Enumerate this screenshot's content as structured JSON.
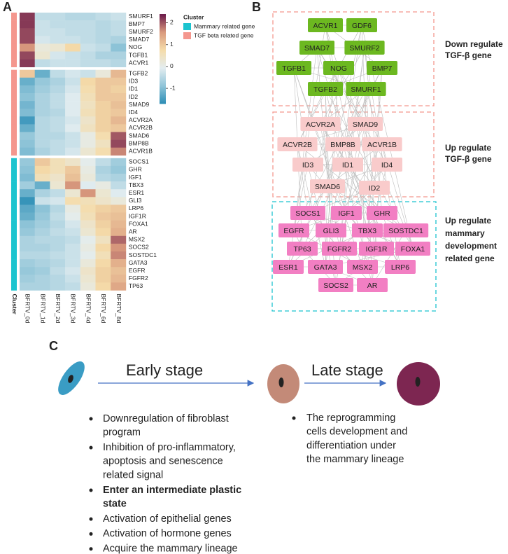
{
  "panels": [
    "A",
    "B",
    "C"
  ],
  "chart_data": {
    "type": "heatmap",
    "columns": [
      "BFRTV_0d",
      "BFRTV_1d",
      "BFRTV_2d",
      "BFRTV_3d",
      "BFRTV_4d",
      "BFRTV_6d",
      "BFRTV_8d"
    ],
    "rows": [
      "SMURF1",
      "BMP7",
      "SMURF2",
      "SMAD7",
      "NOG",
      "TGFB1",
      "ACVR1",
      "TGFB2",
      "ID3",
      "ID1",
      "ID2",
      "SMAD9",
      "ID4",
      "ACVR2A",
      "ACVR2B",
      "SMAD6",
      "BMP8B",
      "ACVR1B",
      "SOCS1",
      "GHR",
      "IGF1",
      "TBX3",
      "ESR1",
      "GLI3",
      "LRP6",
      "IGF1R",
      "FOXA1",
      "AR",
      "MSX2",
      "SOCS2",
      "SOSTDC1",
      "GATA3",
      "EGFR",
      "FGFR2",
      "TP63"
    ],
    "row_cluster": [
      1,
      1,
      1,
      1,
      1,
      1,
      1,
      1,
      1,
      1,
      1,
      1,
      1,
      1,
      1,
      1,
      1,
      1,
      0,
      0,
      0,
      0,
      0,
      0,
      0,
      0,
      0,
      0,
      0,
      0,
      0,
      0,
      0,
      0,
      0
    ],
    "row_splits": [
      7,
      18
    ],
    "values": [
      [
        2.2,
        -0.4,
        -0.4,
        -0.5,
        -0.5,
        -0.4,
        -0.3
      ],
      [
        2.2,
        -0.3,
        -0.4,
        -0.4,
        -0.4,
        -0.5,
        -0.4
      ],
      [
        2.1,
        -0.3,
        -0.3,
        -0.4,
        -0.4,
        -0.5,
        -0.4
      ],
      [
        2.1,
        -0.2,
        -0.3,
        -0.3,
        -0.4,
        -0.5,
        -0.6
      ],
      [
        1.6,
        0.2,
        0.3,
        0.8,
        -0.3,
        -0.4,
        -0.9
      ],
      [
        2.1,
        0.3,
        -0.2,
        -0.3,
        -0.4,
        -0.6,
        -0.6
      ],
      [
        2.2,
        -0.4,
        -0.3,
        -0.3,
        -0.4,
        -0.4,
        -0.5
      ],
      [
        1.0,
        -1.2,
        -0.4,
        -0.2,
        -0.3,
        0.2,
        1.2
      ],
      [
        -1.2,
        -0.8,
        -0.6,
        -0.3,
        0.8,
        1.0,
        1.0
      ],
      [
        -1.0,
        -0.7,
        -0.5,
        -0.2,
        0.7,
        1.0,
        0.9
      ],
      [
        -0.9,
        -0.6,
        -0.4,
        -0.1,
        0.6,
        1.0,
        1.0
      ],
      [
        -1.1,
        -0.6,
        -0.4,
        -0.1,
        0.5,
        0.9,
        1.1
      ],
      [
        -1.0,
        -0.6,
        -0.5,
        -0.1,
        0.6,
        0.9,
        1.0
      ],
      [
        -1.5,
        -0.5,
        -0.4,
        -0.2,
        0.4,
        0.9,
        1.2
      ],
      [
        -1.2,
        -0.5,
        -0.4,
        -0.1,
        0.5,
        0.9,
        1.0
      ],
      [
        -0.8,
        -0.5,
        -0.5,
        -0.3,
        0.1,
        0.7,
        2.0
      ],
      [
        -0.9,
        -0.5,
        -0.4,
        -0.3,
        0.1,
        0.5,
        2.1
      ],
      [
        -1.0,
        -0.6,
        -0.4,
        -0.2,
        0.3,
        0.7,
        1.7
      ],
      [
        -0.8,
        1.0,
        0.6,
        0.4,
        0.0,
        -0.4,
        -0.7
      ],
      [
        -0.9,
        0.8,
        0.6,
        1.0,
        0.1,
        -0.6,
        -0.8
      ],
      [
        -1.0,
        0.6,
        0.4,
        1.1,
        0.2,
        -0.5,
        -0.6
      ],
      [
        -0.7,
        -1.2,
        0.3,
        1.6,
        -0.1,
        0.1,
        -0.4
      ],
      [
        -1.2,
        -0.6,
        -0.4,
        0.3,
        1.6,
        0.3,
        -0.1
      ],
      [
        -1.6,
        -0.3,
        -0.2,
        0.7,
        0.6,
        0.4,
        0.2
      ],
      [
        -1.3,
        -0.9,
        -0.5,
        0.1,
        0.7,
        0.9,
        1.0
      ],
      [
        -1.2,
        -0.8,
        -0.4,
        0.0,
        0.6,
        1.0,
        1.1
      ],
      [
        -0.9,
        -0.7,
        -0.5,
        -0.2,
        0.4,
        0.9,
        1.2
      ],
      [
        -0.8,
        -0.6,
        -0.4,
        -0.3,
        0.3,
        0.8,
        1.3
      ],
      [
        -0.6,
        -0.5,
        -0.5,
        -0.4,
        0.0,
        0.5,
        1.9
      ],
      [
        -0.6,
        -0.6,
        -0.5,
        -0.3,
        0.1,
        0.8,
        1.6
      ],
      [
        -0.5,
        -0.5,
        -0.4,
        -0.3,
        0.0,
        0.6,
        1.7
      ],
      [
        -0.7,
        -0.6,
        -0.5,
        -0.3,
        0.2,
        0.8,
        1.3
      ],
      [
        -0.8,
        -0.7,
        -0.4,
        -0.2,
        0.4,
        0.9,
        1.1
      ],
      [
        -0.7,
        -0.6,
        -0.5,
        -0.3,
        0.3,
        0.9,
        1.2
      ],
      [
        -0.6,
        -0.6,
        -0.5,
        -0.4,
        0.2,
        0.8,
        1.4
      ]
    ],
    "zlim": [
      -1.7,
      2.4
    ],
    "zticks": [
      2,
      1,
      0,
      -1
    ],
    "colormap": [
      "#2b8db5",
      "#8fc4d8",
      "#e3edf0",
      "#f5dcaa",
      "#d9997d",
      "#6b1a4a"
    ],
    "legend_title": "Cluster",
    "clusters": [
      {
        "name": "Mammary related gene",
        "color": "#1cc4cf"
      },
      {
        "name": "TGF beta related gene",
        "color": "#f4978e"
      }
    ],
    "cluster_axis_label": "Cluster"
  },
  "network": {
    "groups": [
      {
        "label": [
          "Down regulate",
          "TGF-β gene"
        ],
        "color": "#6cb820",
        "box_color": "#f4978e",
        "nodes": [
          "ACVR1",
          "GDF6",
          "SMAD7",
          "SMURF2",
          "TGFB1",
          "NOG",
          "BMP7",
          "TGFB2",
          "SMURF1"
        ]
      },
      {
        "label": [
          "Up regulate",
          "TGF-β gene"
        ],
        "color": "#f9cbcb",
        "box_color": "#f4978e",
        "nodes": [
          "ACVR2A",
          "SMAD9",
          "ACVR2B",
          "BMP8B",
          "ACVR1B",
          "ID3",
          "ID1",
          "ID4",
          "SMAD6",
          "ID2"
        ]
      },
      {
        "label": [
          "Up regulate",
          "mammary",
          "development",
          "related gene"
        ],
        "color": "#f27fc3",
        "box_color": "#1cc4cf",
        "nodes": [
          "SOCS1",
          "IGF1",
          "GHR",
          "EGFR",
          "GLI3",
          "TBX3",
          "SOSTDC1",
          "TP63",
          "FGFR2",
          "IGF1R",
          "FOXA1",
          "ESR1",
          "GATA3",
          "MSX2",
          "LRP6",
          "SOCS2",
          "AR"
        ]
      }
    ]
  },
  "schematic": {
    "stages": [
      "Early stage",
      "Late stage"
    ],
    "bullets": [
      [
        {
          "lines": [
            "Downregulation of  fibroblast",
            "program"
          ],
          "bold": false
        },
        {
          "lines": [
            "Inhibition of  pro-inflammatory,",
            "apoptosis and  senescence",
            "related signal"
          ],
          "bold": false
        },
        {
          "lines": [
            "Enter an intermediate  plastic",
            "state"
          ],
          "bold": true
        },
        {
          "lines": [
            "Activation of epithelial genes"
          ],
          "bold": false
        },
        {
          "lines": [
            "Activation of hormone genes"
          ],
          "bold": false
        },
        {
          "lines": [
            "Acquire the  mammary lineage"
          ],
          "bold": false
        }
      ],
      [
        {
          "lines": [
            "The reprogramming",
            "cells development and",
            "differentiation under",
            "the mammary lineage"
          ],
          "bold": false
        }
      ]
    ]
  }
}
